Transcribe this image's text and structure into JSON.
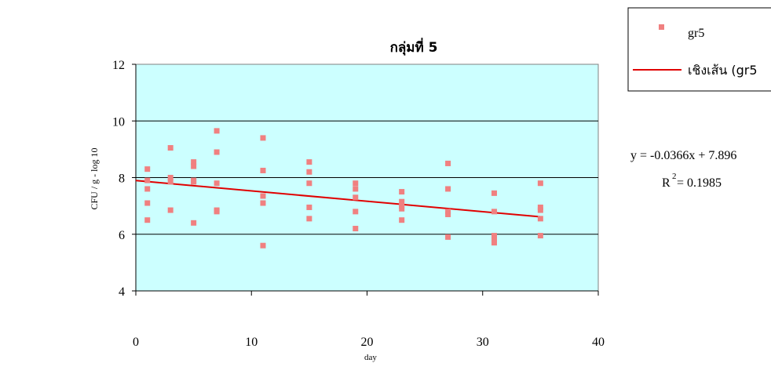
{
  "chart_data": {
    "type": "scatter",
    "title": "กลุ่มที่ 5",
    "xlabel": "day",
    "ylabel": "CFU / g - log 10",
    "xlim": [
      0,
      40
    ],
    "ylim": [
      4,
      12
    ],
    "x_ticks": [
      0,
      10,
      20,
      30,
      40
    ],
    "y_ticks": [
      4,
      6,
      8,
      10,
      12
    ],
    "grid": "horizontal",
    "plot_background": "#ccffff",
    "series": [
      {
        "name": "gr5",
        "marker": "square",
        "color": "#f08080",
        "points": [
          [
            1,
            8.3
          ],
          [
            1,
            7.9
          ],
          [
            1,
            7.6
          ],
          [
            1,
            7.1
          ],
          [
            1,
            6.5
          ],
          [
            3,
            9.05
          ],
          [
            3,
            8.0
          ],
          [
            3,
            7.85
          ],
          [
            3,
            6.85
          ],
          [
            5,
            8.55
          ],
          [
            5,
            8.4
          ],
          [
            5,
            7.9
          ],
          [
            5,
            7.85
          ],
          [
            5,
            6.4
          ],
          [
            7,
            9.65
          ],
          [
            7,
            8.9
          ],
          [
            7,
            7.8
          ],
          [
            7,
            6.85
          ],
          [
            7,
            6.8
          ],
          [
            11,
            9.4
          ],
          [
            11,
            8.25
          ],
          [
            11,
            7.35
          ],
          [
            11,
            7.1
          ],
          [
            11,
            5.6
          ],
          [
            15,
            8.55
          ],
          [
            15,
            8.2
          ],
          [
            15,
            7.8
          ],
          [
            15,
            6.95
          ],
          [
            15,
            6.55
          ],
          [
            19,
            7.8
          ],
          [
            19,
            7.6
          ],
          [
            19,
            7.3
          ],
          [
            19,
            6.8
          ],
          [
            19,
            6.2
          ],
          [
            23,
            7.5
          ],
          [
            23,
            7.15
          ],
          [
            23,
            7.0
          ],
          [
            23,
            6.9
          ],
          [
            23,
            6.5
          ],
          [
            27,
            8.5
          ],
          [
            27,
            7.6
          ],
          [
            27,
            6.8
          ],
          [
            27,
            6.7
          ],
          [
            27,
            5.9
          ],
          [
            31,
            7.45
          ],
          [
            31,
            6.8
          ],
          [
            31,
            5.95
          ],
          [
            31,
            5.8
          ],
          [
            31,
            5.7
          ],
          [
            35,
            7.8
          ],
          [
            35,
            6.95
          ],
          [
            35,
            6.85
          ],
          [
            35,
            6.55
          ],
          [
            35,
            5.95
          ]
        ]
      },
      {
        "name": "เชิงเส้น (gr5",
        "type": "line",
        "color": "#e00000",
        "points": [
          [
            0,
            7.896
          ],
          [
            35,
            6.615
          ]
        ]
      }
    ],
    "annotations": {
      "equation": "y = -0.0366x + 7.896",
      "r_label": "R",
      "r_exponent": "2",
      "r_value": " = 0.1985"
    },
    "legend": {
      "placement": "top-right",
      "items": [
        "gr5",
        "เชิงเส้น (gr5"
      ]
    }
  }
}
